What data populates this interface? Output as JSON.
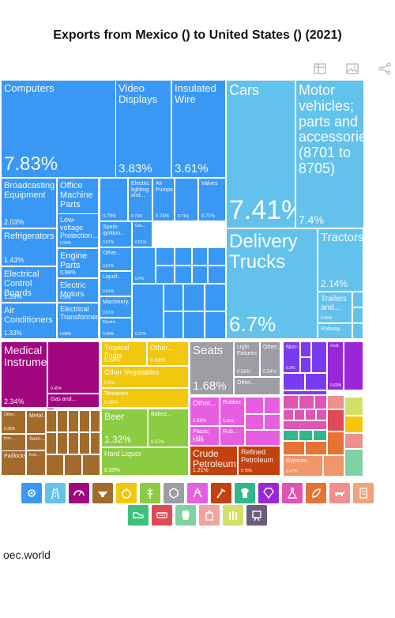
{
  "title": "Exports from Mexico () to United States () (2021)",
  "footer": "oec.world",
  "toolbar": [
    "table-icon",
    "image-icon",
    "share-icon"
  ],
  "chart_data": {
    "type": "treemap",
    "title": "Exports from Mexico () to United States () (2021)",
    "tiles": [
      {
        "label": "Computers",
        "value": "7.83%",
        "color": "#3a98f5"
      },
      {
        "label": "Video Displays",
        "value": "3.83%",
        "color": "#3a98f5"
      },
      {
        "label": "Insulated Wire",
        "value": "3.61%",
        "color": "#3a98f5"
      },
      {
        "label": "Broadcasting Equipment",
        "value": "2.03%",
        "color": "#3a98f5"
      },
      {
        "label": "Office Machine Parts",
        "value": "1.11%",
        "color": "#3a98f5"
      },
      {
        "label": "Low-voltage Protection...",
        "value": "0.99%",
        "color": "#3a98f5"
      },
      {
        "label": "Refrigerators",
        "value": "1.43%",
        "color": "#3a98f5"
      },
      {
        "label": "Engine Parts",
        "value": "0.98%",
        "color": "#3a98f5"
      },
      {
        "label": "Electrical Control Boards",
        "value": "1.39%",
        "color": "#3a98f5"
      },
      {
        "label": "Electric Motors",
        "value": "0.98%",
        "color": "#3a98f5"
      },
      {
        "label": "Air Conditioners",
        "value": "1.33%",
        "color": "#3a98f5"
      },
      {
        "label": "Electrical Transformers",
        "value": "0.88%",
        "color": "#3a98f5"
      },
      {
        "label": "",
        "value": "0.79%",
        "color": "#3a98f5"
      },
      {
        "label": "Electric lighting and...",
        "value": "0.76%",
        "color": "#3a98f5"
      },
      {
        "label": "Air Pumps",
        "value": "0.74%",
        "color": "#3a98f5"
      },
      {
        "label": "",
        "value": "0.71%",
        "color": "#3a98f5"
      },
      {
        "label": "Valves",
        "value": "0.71%",
        "color": "#3a98f5"
      },
      {
        "label": "Spark-ignition...",
        "value": "0.67%",
        "color": "#3a98f5"
      },
      {
        "label": "Gas...",
        "value": "0.61%",
        "color": "#3a98f5"
      },
      {
        "label": "Other...",
        "value": "0.57%",
        "color": "#3a98f5"
      },
      {
        "label": "Liquid...",
        "value": "0.54%",
        "color": "#3a98f5"
      },
      {
        "label": "Machinery...",
        "value": "0.51%",
        "color": "#3a98f5"
      },
      {
        "label": "Electric...",
        "value": "0.49%",
        "color": "#3a98f5"
      },
      {
        "label": "",
        "value": "0.4%",
        "color": "#3a98f5"
      },
      {
        "label": "",
        "value": "0.37%",
        "color": "#3a98f5"
      },
      {
        "label": "Cars",
        "value": "7.41%",
        "color": "#63c2ec"
      },
      {
        "label": "Motor vehicles; parts and accessories (8701 to 8705)",
        "value": "7.4%",
        "color": "#63c2ec"
      },
      {
        "label": "Delivery Trucks",
        "value": "6.7%",
        "color": "#63c2ec"
      },
      {
        "label": "Tractors",
        "value": "2.14%",
        "color": "#63c2ec"
      },
      {
        "label": "Trailers and...",
        "value": "0.65%",
        "color": "#63c2ec"
      },
      {
        "label": "Railway...",
        "value": "",
        "color": "#63c2ec"
      },
      {
        "label": "Medical Instruments",
        "value": "2.34%",
        "color": "#a0077f"
      },
      {
        "label": "",
        "value": "0.45%",
        "color": "#a0077f"
      },
      {
        "label": "Gas and...",
        "value": "",
        "color": "#a0077f"
      },
      {
        "label": "Tropical Fruits",
        "value": "0.84%",
        "color": "#f2c80f"
      },
      {
        "label": "Other...",
        "value": "0.49%",
        "color": "#f2c80f"
      },
      {
        "label": "Other Vegetables",
        "value": "0.8%",
        "color": "#f2c80f"
      },
      {
        "label": "Tomatoes",
        "value": "0.69%",
        "color": "#f2c80f"
      },
      {
        "label": "Seats",
        "value": "1.68%",
        "color": "#9d9da3"
      },
      {
        "label": "Light Fixtures",
        "value": "0.58%",
        "color": "#9d9da3"
      },
      {
        "label": "Other...",
        "value": "0.54%",
        "color": "#9d9da3"
      },
      {
        "label": "Other...",
        "value": "",
        "color": "#9d9da3"
      },
      {
        "label": "Non-...",
        "value": "0.3%",
        "color": "#7a3bf0"
      },
      {
        "label": "Gold",
        "value": "0.69%",
        "color": "#9b26d9"
      },
      {
        "label": "Other...",
        "value": "0.38%",
        "color": "#a36b2b"
      },
      {
        "label": "Metal...",
        "value": "",
        "color": "#a36b2b"
      },
      {
        "label": "Semi-...",
        "value": "",
        "color": "#a36b2b"
      },
      {
        "label": "Iron...",
        "value": "0.36%",
        "color": "#a36b2b"
      },
      {
        "label": "Iron...",
        "value": "",
        "color": "#a36b2b"
      },
      {
        "label": "Padlocks",
        "value": "",
        "color": "#a36b2b"
      },
      {
        "label": "Beer",
        "value": "1.32%",
        "color": "#8ccc42"
      },
      {
        "label": "Baked...",
        "value": "0.47%",
        "color": "#8ccc42"
      },
      {
        "label": "Hard Liquor",
        "value": "0.89%",
        "color": "#8ccc42"
      },
      {
        "label": "Other...",
        "value": "0.56%",
        "color": "#e85ee0"
      },
      {
        "label": "Rubber...",
        "value": "0.38%",
        "color": "#e85ee0"
      },
      {
        "label": "Plastic Lids",
        "value": "0.44%",
        "color": "#e85ee0"
      },
      {
        "label": "Rub...",
        "value": "",
        "color": "#e85ee0"
      },
      {
        "label": "Crude Petroleum",
        "value": "1.21%",
        "color": "#c3410e"
      },
      {
        "label": "Refined Petroleum",
        "value": "0.78%",
        "color": "#c3410e"
      },
      {
        "label": "Gypsum...",
        "value": "0.47%",
        "color": "#f1956a"
      }
    ],
    "legend_sectors": [
      {
        "name": "machinery-icon",
        "color": "#3a98f5"
      },
      {
        "name": "transportation-icon",
        "color": "#63c2ec"
      },
      {
        "name": "instruments-icon",
        "color": "#a0077f"
      },
      {
        "name": "metals-icon",
        "color": "#a36b2b"
      },
      {
        "name": "vegetable-products-icon",
        "color": "#f2c80f"
      },
      {
        "name": "foodstuffs-icon",
        "color": "#8ccc42"
      },
      {
        "name": "miscellaneous-icon",
        "color": "#9d9da3"
      },
      {
        "name": "plastics-icon",
        "color": "#e85ee0"
      },
      {
        "name": "mineral-products-icon",
        "color": "#c3410e"
      },
      {
        "name": "textiles-icon",
        "color": "#31b88a"
      },
      {
        "name": "precious-metals-icon",
        "color": "#9b26d9"
      },
      {
        "name": "chemical-products-icon",
        "color": "#e054b3"
      },
      {
        "name": "wood-products-icon",
        "color": "#e57434"
      },
      {
        "name": "animal-products-icon",
        "color": "#ef8f8f"
      },
      {
        "name": "paper-goods-icon",
        "color": "#f0a37a"
      },
      {
        "name": "footwear-icon",
        "color": "#3fc07a"
      },
      {
        "name": "weapons-icon",
        "color": "#e04a55"
      },
      {
        "name": "animal-hides-icon",
        "color": "#7fd3a3"
      },
      {
        "name": "stone-and-glass-icon",
        "color": "#f1a3a0"
      },
      {
        "name": "animal-and-vegetable-bi-products-icon",
        "color": "#d3e06a"
      },
      {
        "name": "arts-and-antiques-icon",
        "color": "#6b5e7a"
      }
    ]
  }
}
